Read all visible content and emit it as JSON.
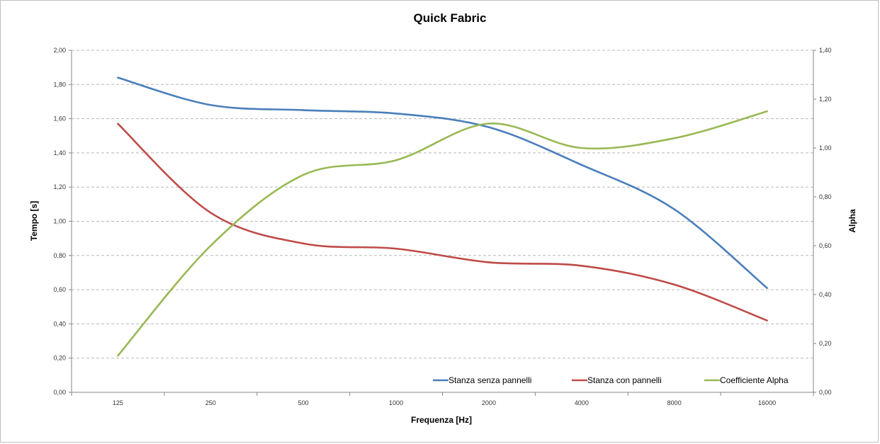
{
  "chart_data": {
    "type": "line",
    "title": "Quick Fabric",
    "xlabel": "Frequenza [Hz]",
    "ylabel": "Tempo [s]",
    "y2label": "Alpha",
    "categories": [
      "125",
      "250",
      "500",
      "1000",
      "2000",
      "4000",
      "8000",
      "16000"
    ],
    "ylim": [
      0,
      2
    ],
    "y_ticks": [
      "0,00",
      "0,20",
      "0,40",
      "0,60",
      "0,80",
      "1,00",
      "1,20",
      "1,40",
      "1,60",
      "1,80",
      "2,00"
    ],
    "y2lim": [
      0,
      1.4
    ],
    "y2_ticks": [
      "0,00",
      "0,20",
      "0,40",
      "0,60",
      "0,80",
      "1,00",
      "1,20",
      "1,40"
    ],
    "grid": "horizontal dashed",
    "legend_position": "bottom-right",
    "series": [
      {
        "name": "Stanza senza pannelli",
        "axis": "left",
        "color": "#4a7ebb",
        "values": [
          1.84,
          1.68,
          1.65,
          1.63,
          1.55,
          1.33,
          1.07,
          0.61
        ]
      },
      {
        "name": "Stanza con pannelli",
        "axis": "left",
        "color": "#be4b48",
        "values": [
          1.57,
          1.05,
          0.87,
          0.84,
          0.76,
          0.74,
          0.63,
          0.42
        ]
      },
      {
        "name": "Coefficiente Alpha",
        "axis": "right",
        "color": "#98b954",
        "values": [
          0.15,
          0.6,
          0.89,
          0.95,
          1.1,
          1.0,
          1.04,
          1.15
        ]
      }
    ]
  }
}
